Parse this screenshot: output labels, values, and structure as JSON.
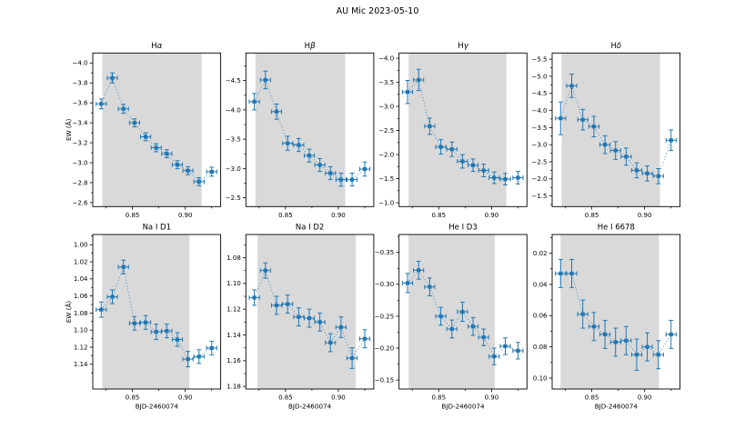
{
  "figure": {
    "title": "AU Mic 2023-05-10",
    "background_color": "#ffffff",
    "text_color": "#000000",
    "accent_color": "#1f77b4",
    "shade_color": "#d9d9d9"
  },
  "chart_data": {
    "type": "line",
    "title": "AU Mic 2023-05-10",
    "xlabel": "BJD-2460074",
    "ylabel": "EW (Å)",
    "marker": "square",
    "linestyle": "dotted",
    "grid": false,
    "legend": "none",
    "x": [
      0.8205,
      0.831,
      0.8415,
      0.852,
      0.8625,
      0.8725,
      0.8825,
      0.8925,
      0.9025,
      0.913,
      0.925
    ],
    "xerr": 0.0048,
    "xlim": [
      0.8125,
      0.9335
    ],
    "xticks": [
      0.85,
      0.9
    ],
    "xtick_decimals": 2,
    "x_minor_ticks": [
      0.825,
      0.875,
      0.925
    ],
    "panels": [
      {
        "id": "h-alpha",
        "title": "Hα",
        "row": 0,
        "col": 0,
        "y": [
          -3.59,
          -3.85,
          -3.54,
          -3.4,
          -3.26,
          -3.15,
          -3.09,
          -2.98,
          -2.92,
          -2.81,
          -2.91
        ],
        "yerr": [
          0.05,
          0.05,
          0.045,
          0.04,
          0.04,
          0.04,
          0.04,
          0.04,
          0.04,
          0.04,
          0.045
        ],
        "ylim": [
          -4.1,
          -2.56
        ],
        "yticks": [
          -4.0,
          -3.8,
          -3.6,
          -3.4,
          -3.2,
          -3.0,
          -2.8,
          -2.6
        ],
        "ytick_decimals": 1,
        "shaded_span": [
          0.8215,
          0.9155
        ]
      },
      {
        "id": "h-beta",
        "title": "Hβ",
        "row": 0,
        "col": 1,
        "y": [
          -4.14,
          -4.51,
          -3.97,
          -3.43,
          -3.4,
          -3.22,
          -3.06,
          -2.92,
          -2.81,
          -2.81,
          -2.99
        ],
        "yerr": [
          0.14,
          0.15,
          0.13,
          0.12,
          0.11,
          0.11,
          0.11,
          0.11,
          0.11,
          0.11,
          0.12
        ],
        "ylim": [
          -4.97,
          -2.35
        ],
        "yticks": [
          -4.5,
          -4.0,
          -3.5,
          -3.0,
          -2.5
        ],
        "ytick_decimals": 1,
        "shaded_span": [
          0.8215,
          0.9065
        ]
      },
      {
        "id": "h-gamma",
        "title": "Hγ",
        "row": 0,
        "col": 2,
        "y": [
          -3.3,
          -3.55,
          -2.59,
          -2.16,
          -2.11,
          -1.86,
          -1.78,
          -1.67,
          -1.52,
          -1.49,
          -1.52
        ],
        "yerr": [
          0.24,
          0.22,
          0.17,
          0.15,
          0.15,
          0.14,
          0.13,
          0.13,
          0.12,
          0.12,
          0.13
        ],
        "ylim": [
          -4.11,
          -0.92
        ],
        "yticks": [
          -4.0,
          -3.5,
          -3.0,
          -2.5,
          -2.0,
          -1.5,
          -1.0
        ],
        "ytick_decimals": 1,
        "shaded_span": [
          0.8215,
          0.914
        ]
      },
      {
        "id": "h-delta",
        "title": "Hδ",
        "row": 0,
        "col": 3,
        "y": [
          -3.77,
          -4.72,
          -3.73,
          -3.53,
          -3.0,
          -2.83,
          -2.65,
          -2.25,
          -2.16,
          -2.08,
          -3.13
        ],
        "yerr": [
          0.48,
          0.34,
          0.3,
          0.3,
          0.26,
          0.26,
          0.25,
          0.22,
          0.22,
          0.22,
          0.3
        ],
        "ylim": [
          -5.68,
          -1.19
        ],
        "yticks": [
          -5.5,
          -5.0,
          -4.5,
          -4.0,
          -3.5,
          -3.0,
          -2.5,
          -2.0,
          -1.5
        ],
        "ytick_decimals": 1,
        "shaded_span": [
          0.8215,
          0.9145
        ]
      },
      {
        "id": "na-i-d1",
        "title": "Na I D1",
        "row": 1,
        "col": 0,
        "y": [
          1.076,
          1.061,
          1.026,
          1.092,
          1.091,
          1.102,
          1.101,
          1.111,
          1.134,
          1.131,
          1.121
        ],
        "yerr": [
          0.009,
          0.008,
          0.008,
          0.008,
          0.008,
          0.009,
          0.008,
          0.008,
          0.009,
          0.008,
          0.008
        ],
        "ylim": [
          0.988,
          1.169
        ],
        "yticks": [
          1.0,
          1.02,
          1.04,
          1.06,
          1.08,
          1.1,
          1.12,
          1.14
        ],
        "ytick_decimals": 2,
        "shaded_span": [
          0.8215,
          0.904
        ]
      },
      {
        "id": "na-i-d2",
        "title": "Na I D2",
        "row": 1,
        "col": 1,
        "y": [
          1.111,
          1.09,
          1.117,
          1.116,
          1.126,
          1.127,
          1.13,
          1.146,
          1.134,
          1.158,
          1.143
        ],
        "yerr": [
          0.006,
          0.006,
          0.007,
          0.007,
          0.007,
          0.007,
          0.007,
          0.007,
          0.008,
          0.008,
          0.007
        ],
        "ylim": [
          1.062,
          1.182
        ],
        "yticks": [
          1.08,
          1.1,
          1.12,
          1.14,
          1.16,
          1.18
        ],
        "ytick_decimals": 2,
        "shaded_span": [
          0.8235,
          0.9165
        ]
      },
      {
        "id": "he-i-d3",
        "title": "He I D3",
        "row": 1,
        "col": 2,
        "y": [
          -0.302,
          -0.322,
          -0.296,
          -0.25,
          -0.23,
          -0.257,
          -0.234,
          -0.217,
          -0.187,
          -0.203,
          -0.196
        ],
        "yerr": [
          0.015,
          0.014,
          0.014,
          0.014,
          0.014,
          0.015,
          0.014,
          0.013,
          0.013,
          0.013,
          0.013
        ],
        "ylim": [
          -0.378,
          -0.136
        ],
        "yticks": [
          -0.35,
          -0.3,
          -0.25,
          -0.2,
          -0.15
        ],
        "ytick_decimals": 2,
        "shaded_span": [
          0.8215,
          0.903
        ]
      },
      {
        "id": "he-i-6678",
        "title": "He I 6678",
        "row": 1,
        "col": 3,
        "y": [
          0.033,
          0.033,
          0.059,
          0.067,
          0.072,
          0.077,
          0.076,
          0.085,
          0.08,
          0.085,
          0.072
        ],
        "yerr": [
          0.009,
          0.009,
          0.009,
          0.009,
          0.009,
          0.009,
          0.009,
          0.01,
          0.009,
          0.009,
          0.009
        ],
        "ylim": [
          0.008,
          0.107
        ],
        "yticks": [
          0.02,
          0.04,
          0.06,
          0.08,
          0.1
        ],
        "ytick_decimals": 2,
        "shaded_span": [
          0.8205,
          0.9135
        ]
      }
    ]
  }
}
